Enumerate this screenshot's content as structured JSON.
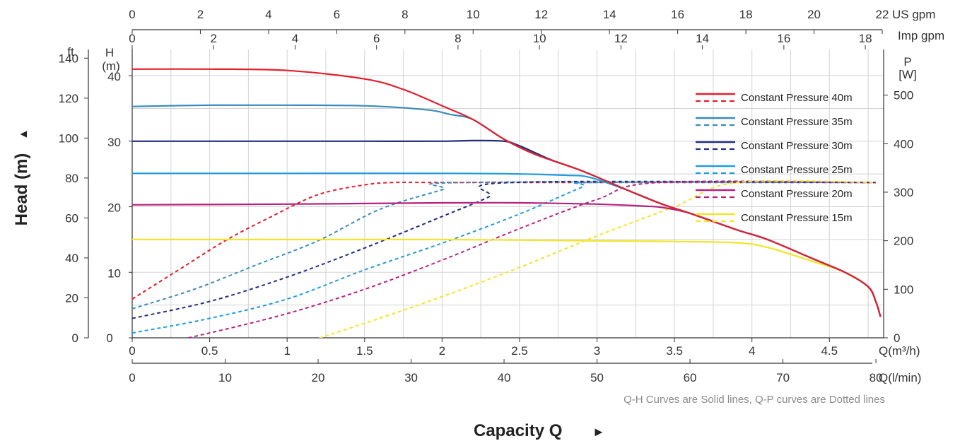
{
  "chart_data": {
    "type": "line",
    "title": "",
    "note": "Q-H Curves are Solid lines, Q-P curves are Dotted lines",
    "xlabel": "Capacity Q",
    "ylabel": "Head (m)",
    "x_arrow": "►",
    "y_arrow": "▲",
    "axes": {
      "x_m3h": {
        "label": "Q(m³/h)",
        "range": [
          0,
          4.85
        ],
        "ticks": [
          "0",
          "0.5",
          "1",
          "1.5",
          "2",
          "2.5",
          "3",
          "3.5",
          "4",
          "4.5"
        ]
      },
      "x_lmin": {
        "label": "Q(l/min)",
        "range": [
          0,
          80.83
        ],
        "ticks": [
          "0",
          "10",
          "20",
          "30",
          "40",
          "50",
          "60",
          "70",
          "80"
        ]
      },
      "x_usgpm": {
        "label": "US gpm",
        "range": [
          0,
          22
        ],
        "ticks": [
          "0",
          "2",
          "4",
          "6",
          "8",
          "10",
          "12",
          "14",
          "16",
          "18",
          "20",
          "22"
        ]
      },
      "x_impgpm": {
        "label": "Imp gpm",
        "range": [
          0,
          18.45
        ],
        "ticks": [
          "0",
          "2",
          "4",
          "6",
          "8",
          "10",
          "12",
          "14",
          "16",
          "18"
        ]
      },
      "y_head_m": {
        "label_top": "H",
        "label_bottom": "(m)",
        "range": [
          0,
          44
        ],
        "ticks": [
          "10",
          "20",
          "30",
          "40"
        ]
      },
      "y_head_ft": {
        "label": "ft",
        "range": [
          0,
          144.36
        ],
        "ticks": [
          "0",
          "20",
          "40",
          "60",
          "80",
          "100",
          "120",
          "140"
        ]
      },
      "y_power_w": {
        "label_top": "P",
        "label_bottom": "[W]",
        "range": [
          0,
          594
        ],
        "ticks": [
          "0",
          "100",
          "200",
          "300",
          "400",
          "500"
        ]
      }
    },
    "grid": true,
    "legend_position": "top-right",
    "series": [
      {
        "name": "Constant Pressure 40m",
        "color": "#e41f2c",
        "qh": [
          [
            0,
            41
          ],
          [
            0.5,
            41
          ],
          [
            1,
            40.8
          ],
          [
            1.5,
            39.5
          ],
          [
            1.75,
            37.9
          ],
          [
            2,
            35.4
          ],
          [
            2.2,
            33.3
          ],
          [
            2.4,
            30.3
          ],
          [
            2.6,
            28
          ],
          [
            2.9,
            25.5
          ],
          [
            3.2,
            22.5
          ],
          [
            3.42,
            20.4
          ],
          [
            3.6,
            19
          ],
          [
            3.9,
            16.5
          ],
          [
            4.1,
            15
          ],
          [
            4.4,
            12
          ],
          [
            4.6,
            10
          ],
          [
            4.75,
            7.8
          ],
          [
            4.8,
            5.5
          ],
          [
            4.83,
            3.2
          ]
        ],
        "qp": [
          [
            0,
            80
          ],
          [
            0.3,
            140
          ],
          [
            0.6,
            200
          ],
          [
            0.9,
            250
          ],
          [
            1.2,
            295
          ],
          [
            1.5,
            315
          ],
          [
            1.7,
            320
          ],
          [
            2.1,
            320
          ],
          [
            4.8,
            320
          ]
        ]
      },
      {
        "name": "Constant Pressure 35m",
        "color": "#3a8bbd",
        "qh": [
          [
            0,
            35.3
          ],
          [
            0.5,
            35.5
          ],
          [
            1,
            35.5
          ],
          [
            1.5,
            35.4
          ],
          [
            1.9,
            34.8
          ],
          [
            2.05,
            34.1
          ],
          [
            2.2,
            33.3
          ],
          [
            2.4,
            30.3
          ],
          [
            2.6,
            28
          ],
          [
            2.9,
            25.5
          ],
          [
            3.2,
            22.5
          ],
          [
            3.42,
            20.4
          ],
          [
            3.6,
            19
          ],
          [
            3.9,
            16.5
          ],
          [
            4.1,
            15
          ],
          [
            4.4,
            12
          ],
          [
            4.6,
            10
          ],
          [
            4.75,
            7.8
          ],
          [
            4.8,
            5.5
          ],
          [
            4.83,
            3.2
          ]
        ],
        "qp": [
          [
            0,
            60
          ],
          [
            0.4,
            100
          ],
          [
            0.8,
            150
          ],
          [
            1.2,
            200
          ],
          [
            1.6,
            265
          ],
          [
            2.0,
            305
          ],
          [
            2.15,
            320
          ],
          [
            4.8,
            320
          ]
        ]
      },
      {
        "name": "Constant Pressure 30m",
        "color": "#232f7d",
        "qh": [
          [
            0,
            30
          ],
          [
            0.5,
            30
          ],
          [
            1,
            30
          ],
          [
            1.5,
            30
          ],
          [
            2,
            30
          ],
          [
            2.2,
            30.1
          ],
          [
            2.4,
            30
          ],
          [
            2.5,
            29.3
          ],
          [
            2.7,
            27.2
          ],
          [
            2.9,
            25.5
          ],
          [
            3.2,
            22.5
          ],
          [
            3.42,
            20.4
          ],
          [
            3.6,
            19
          ],
          [
            3.9,
            16.5
          ],
          [
            4.1,
            15
          ],
          [
            4.4,
            12
          ],
          [
            4.6,
            10
          ],
          [
            4.75,
            7.8
          ],
          [
            4.8,
            5.5
          ],
          [
            4.83,
            3.2
          ]
        ],
        "qp": [
          [
            0,
            40
          ],
          [
            0.5,
            75
          ],
          [
            1,
            125
          ],
          [
            1.5,
            185
          ],
          [
            2.0,
            250
          ],
          [
            2.3,
            290
          ],
          [
            2.45,
            320
          ],
          [
            4.8,
            320
          ]
        ]
      },
      {
        "name": "Constant Pressure 25m",
        "color": "#1f9ddb",
        "qh": [
          [
            0,
            25.1
          ],
          [
            1,
            25.1
          ],
          [
            2,
            25.1
          ],
          [
            2.5,
            25
          ],
          [
            2.8,
            24.8
          ],
          [
            2.95,
            24.5
          ],
          [
            3.2,
            22.5
          ],
          [
            3.42,
            20.4
          ],
          [
            3.6,
            19
          ],
          [
            3.9,
            16.5
          ],
          [
            4.1,
            15
          ],
          [
            4.4,
            12
          ],
          [
            4.6,
            10
          ],
          [
            4.75,
            7.8
          ],
          [
            4.8,
            5.5
          ],
          [
            4.83,
            3.2
          ]
        ],
        "qp": [
          [
            0,
            10
          ],
          [
            0.5,
            40
          ],
          [
            1,
            80
          ],
          [
            1.5,
            140
          ],
          [
            2.0,
            195
          ],
          [
            2.5,
            255
          ],
          [
            2.9,
            310
          ],
          [
            3.0,
            320
          ],
          [
            4.8,
            320
          ]
        ]
      },
      {
        "name": "Constant Pressure 20m",
        "color": "#b5217f",
        "qh": [
          [
            0,
            20.3
          ],
          [
            1,
            20.4
          ],
          [
            2,
            20.6
          ],
          [
            2.5,
            20.6
          ],
          [
            3,
            20.4
          ],
          [
            3.3,
            20.1
          ],
          [
            3.42,
            19.9
          ],
          [
            3.6,
            19
          ],
          [
            3.9,
            16.5
          ],
          [
            4.1,
            15
          ],
          [
            4.4,
            12
          ],
          [
            4.6,
            10
          ],
          [
            4.75,
            7.8
          ],
          [
            4.8,
            5.5
          ],
          [
            4.83,
            3.2
          ]
        ],
        "qp": [
          [
            0,
            -25
          ],
          [
            0.5,
            10
          ],
          [
            1,
            50
          ],
          [
            1.5,
            100
          ],
          [
            2.0,
            160
          ],
          [
            2.5,
            225
          ],
          [
            3.0,
            285
          ],
          [
            3.4,
            320
          ],
          [
            4.8,
            320
          ]
        ]
      },
      {
        "name": "Constant Pressure 15m",
        "color": "#f2e52b",
        "qh": [
          [
            0,
            15
          ],
          [
            1,
            15
          ],
          [
            2,
            15
          ],
          [
            3,
            14.8
          ],
          [
            3.5,
            14.7
          ],
          [
            3.9,
            14.5
          ],
          [
            4.1,
            13.8
          ],
          [
            4.4,
            11.6
          ],
          [
            4.6,
            10
          ],
          [
            4.75,
            7.8
          ],
          [
            4.8,
            5.5
          ],
          [
            4.83,
            3.2
          ]
        ],
        "qp": [
          [
            0,
            -75
          ],
          [
            0.5,
            -55
          ],
          [
            1,
            -20
          ],
          [
            1.5,
            30
          ],
          [
            2.0,
            85
          ],
          [
            2.5,
            145
          ],
          [
            3.0,
            210
          ],
          [
            3.5,
            270
          ],
          [
            3.9,
            320
          ],
          [
            4.8,
            320
          ]
        ]
      }
    ]
  }
}
